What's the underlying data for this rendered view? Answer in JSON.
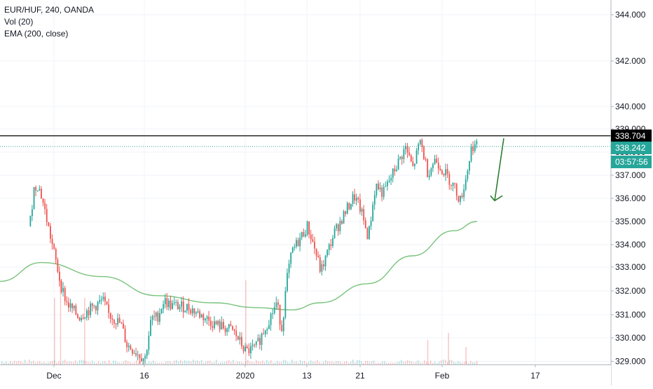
{
  "legend": {
    "symbol": "EUR/HUF, 240, OANDA",
    "volume": "Vol (20)",
    "ema": "EMA (200, close)"
  },
  "colors": {
    "up": "#26a69a",
    "down": "#ef5350",
    "ema": "#4caf50",
    "level_line": "#000000",
    "last_price_line": "#26a69a",
    "arrow": "#2e7d32",
    "grid": "#f0f3fa",
    "axis_text": "#131722"
  },
  "chart_data": {
    "type": "candlestick",
    "y_axis_ticks": [
      "329.000",
      "330.000",
      "331.000",
      "332.000",
      "333.000",
      "334.000",
      "335.000",
      "336.000",
      "337.000",
      "338.000",
      "339.000",
      "340.000",
      "342.000",
      "344.000"
    ],
    "ylim": [
      328.9,
      345.0
    ],
    "x_axis_ticks": [
      "Dec",
      "16",
      "2020",
      "13",
      "21",
      "Feb",
      "17"
    ],
    "horizontal_level": 338.704,
    "last_price": 338.242,
    "countdown": "03:57:56",
    "price_labels": [
      "338.704",
      "338.242",
      "03:57:56"
    ],
    "price_path": [
      [
        "Nov 25",
        334.8
      ],
      [
        "Nov 26",
        336.4
      ],
      [
        "Nov 27",
        336.6
      ],
      [
        "Nov 28",
        336.0
      ],
      [
        "Dec 2",
        332.3
      ],
      [
        "Dec 3",
        331.5
      ],
      [
        "Dec 5",
        330.9
      ],
      [
        "Dec 9",
        331.6
      ],
      [
        "Dec 10",
        331.0
      ],
      [
        "Dec 12",
        330.6
      ],
      [
        "Dec 13",
        329.7
      ],
      [
        "Dec 16",
        329.1
      ],
      [
        "Dec 17",
        330.8
      ],
      [
        "Dec 18",
        330.9
      ],
      [
        "Dec 19",
        331.6
      ],
      [
        "Dec 20",
        331.4
      ],
      [
        "Dec 23",
        331.3
      ],
      [
        "Dec 27",
        330.6
      ],
      [
        "Dec 30",
        330.3
      ],
      [
        "Jan 1",
        329.4
      ],
      [
        "Jan 3",
        329.6
      ],
      [
        "Jan 7",
        331.5
      ],
      [
        "Jan 8",
        330.4
      ],
      [
        "Jan 9",
        332.5
      ],
      [
        "Jan 10",
        333.7
      ],
      [
        "Jan 13",
        334.8
      ],
      [
        "Jan 14",
        333.9
      ],
      [
        "Jan 15",
        332.8
      ],
      [
        "Jan 17",
        334.5
      ],
      [
        "Jan 20",
        336.1
      ],
      [
        "Jan 21",
        335.5
      ],
      [
        "Jan 22",
        334.3
      ],
      [
        "Jan 23",
        336.6
      ],
      [
        "Jan 24",
        336.2
      ],
      [
        "Jan 27",
        338.2
      ],
      [
        "Jan 28",
        337.3
      ],
      [
        "Jan 29",
        338.5
      ],
      [
        "Jan 30",
        337.1
      ],
      [
        "Jan 31",
        337.7
      ],
      [
        "Feb 3",
        336.5
      ],
      [
        "Feb 4",
        335.9
      ],
      [
        "Feb 5",
        336.9
      ],
      [
        "Feb 6",
        338.3
      ],
      [
        "Feb 7",
        338.24
      ]
    ],
    "ema_path": [
      [
        "Nov 18",
        332.4
      ],
      [
        "Nov 28",
        333.2
      ],
      [
        "Dec 9",
        332.6
      ],
      [
        "Dec 18",
        331.8
      ],
      [
        "Dec 27",
        331.5
      ],
      [
        "Jan 3",
        331.3
      ],
      [
        "Jan 10",
        331.2
      ],
      [
        "Jan 15",
        331.5
      ],
      [
        "Jan 22",
        332.3
      ],
      [
        "Jan 28",
        333.5
      ],
      [
        "Feb 3",
        334.6
      ],
      [
        "Feb 7",
        335.0
      ]
    ],
    "volume_spikes": [
      "Dec 1",
      "Dec 2",
      "Dec 6",
      "Jan 1",
      "Jan 30",
      "Feb 2",
      "Feb 5"
    ],
    "annotation": "down-arrow"
  }
}
